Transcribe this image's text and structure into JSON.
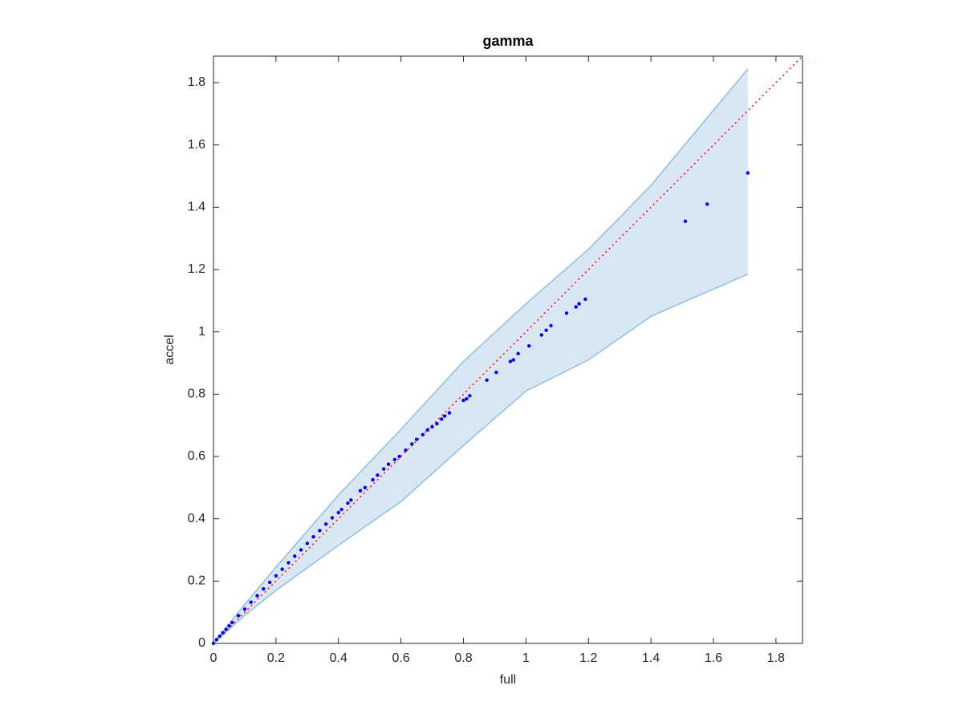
{
  "chart_data": {
    "type": "scatter",
    "title": "gamma",
    "xlabel": "full",
    "ylabel": "accel",
    "x": [
      0,
      0.01,
      0.02,
      0.03,
      0.04,
      0.05,
      0.06,
      0.08,
      0.1,
      0.12,
      0.14,
      0.16,
      0.18,
      0.2,
      0.22,
      0.24,
      0.26,
      0.28,
      0.3,
      0.32,
      0.34,
      0.36,
      0.38,
      0.4,
      0.41,
      0.43,
      0.44,
      0.47,
      0.485,
      0.51,
      0.525,
      0.545,
      0.56,
      0.58,
      0.595,
      0.615,
      0.635,
      0.65,
      0.67,
      0.685,
      0.7,
      0.715,
      0.73,
      0.74,
      0.755,
      0.8,
      0.81,
      0.82,
      0.875,
      0.905,
      0.95,
      0.96,
      0.975,
      1.01,
      1.05,
      1.065,
      1.08,
      1.13,
      1.16,
      1.17,
      1.19,
      1.51,
      1.58,
      1.71
    ],
    "values": [
      0,
      0.012,
      0.023,
      0.034,
      0.045,
      0.056,
      0.067,
      0.089,
      0.11,
      0.132,
      0.153,
      0.175,
      0.196,
      0.217,
      0.238,
      0.259,
      0.28,
      0.3,
      0.321,
      0.342,
      0.362,
      0.383,
      0.403,
      0.42,
      0.43,
      0.45,
      0.46,
      0.49,
      0.5,
      0.525,
      0.54,
      0.56,
      0.575,
      0.59,
      0.6,
      0.62,
      0.64,
      0.655,
      0.67,
      0.685,
      0.695,
      0.705,
      0.72,
      0.73,
      0.74,
      0.78,
      0.785,
      0.795,
      0.845,
      0.87,
      0.905,
      0.91,
      0.93,
      0.955,
      0.99,
      1.005,
      1.02,
      1.06,
      1.08,
      1.09,
      1.105,
      1.355,
      1.41,
      1.51
    ],
    "color": "#0000ff",
    "band": {
      "x": [
        0,
        0.1,
        0.2,
        0.4,
        0.6,
        0.8,
        1.0,
        1.2,
        1.4,
        1.71
      ],
      "upper": [
        0,
        0.125,
        0.245,
        0.476,
        0.687,
        0.905,
        1.09,
        1.265,
        1.47,
        1.844
      ],
      "lower": [
        0,
        0.09,
        0.17,
        0.315,
        0.455,
        0.635,
        0.81,
        0.91,
        1.05,
        1.185
      ],
      "color": "#d9e7f4",
      "edge_color": "#8cbfe1"
    },
    "diagonal_color": "#ff0000",
    "xlim": [
      0,
      1.885
    ],
    "ylim": [
      0,
      1.885
    ],
    "xticks": [
      0,
      0.2,
      0.4,
      0.6,
      0.8,
      1,
      1.2,
      1.4,
      1.6,
      1.8
    ],
    "yticks": [
      0,
      0.2,
      0.4,
      0.6,
      0.8,
      1,
      1.2,
      1.4,
      1.6,
      1.8
    ]
  }
}
